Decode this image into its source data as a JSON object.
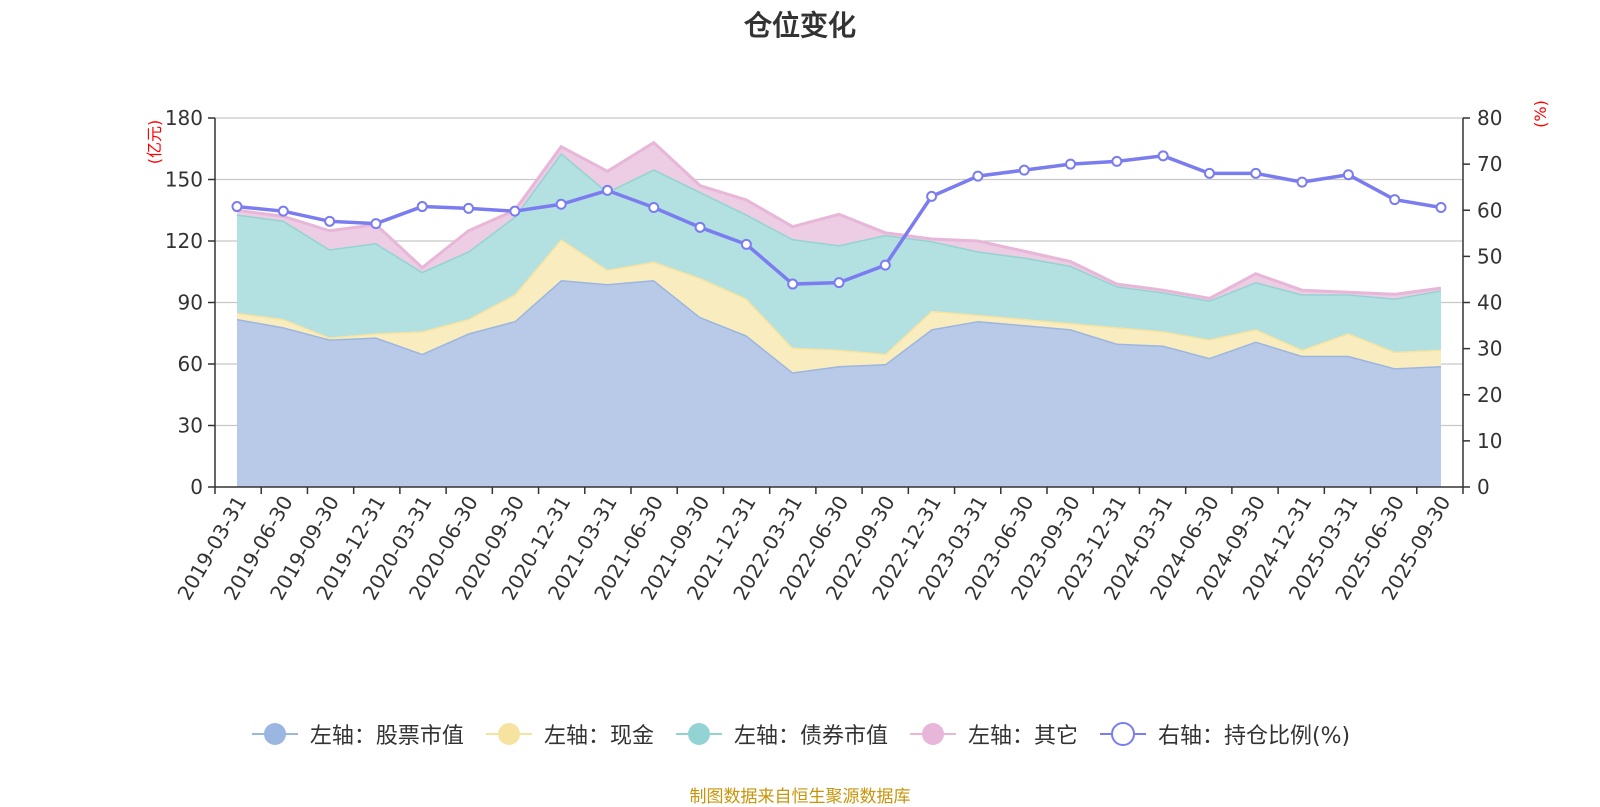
{
  "title": "仓位变化",
  "source_note": "制图数据来自恒生聚源数据库",
  "chart_data": {
    "type": "area",
    "title": "仓位变化",
    "categories": [
      "2019-03-31",
      "2019-06-30",
      "2019-09-30",
      "2019-12-31",
      "2020-03-31",
      "2020-06-30",
      "2020-09-30",
      "2020-12-31",
      "2021-03-31",
      "2021-06-30",
      "2021-09-30",
      "2021-12-31",
      "2022-03-31",
      "2022-06-30",
      "2022-09-30",
      "2022-12-31",
      "2023-03-31",
      "2023-06-30",
      "2023-09-30",
      "2023-12-31",
      "2024-03-31",
      "2024-06-30",
      "2024-09-30",
      "2024-12-31",
      "2025-03-31",
      "2025-06-30",
      "2025-09-30"
    ],
    "left_axis": {
      "unit": "(亿元)",
      "range": [
        0,
        180
      ],
      "ticks": [
        0,
        30,
        60,
        90,
        120,
        150,
        180
      ]
    },
    "right_axis": {
      "unit": "(%)",
      "range": [
        0,
        80
      ],
      "ticks": [
        0,
        10,
        20,
        30,
        40,
        50,
        60,
        70,
        80
      ]
    },
    "stacked_series": [
      {
        "name": "左轴：股票市值",
        "color": "#9bb6e0",
        "fill": "#b8cae8",
        "values": [
          82,
          78,
          72,
          73,
          65,
          75,
          81,
          101,
          99,
          101,
          83,
          74,
          56,
          59,
          60,
          77,
          81,
          79,
          77,
          70,
          69,
          63,
          71,
          64,
          64,
          58,
          59
        ]
      },
      {
        "name": "左轴：现金",
        "color": "#f7e3a0",
        "fill": "#f9ecbe",
        "values": [
          3,
          4,
          1,
          2,
          11,
          7,
          13,
          20,
          7,
          9,
          19,
          18,
          12,
          8,
          5,
          9,
          3,
          3,
          3,
          8,
          7,
          9,
          6,
          3,
          11,
          8,
          8
        ]
      },
      {
        "name": "左轴：债券市值",
        "color": "#94d3d3",
        "fill": "#b3e0e0",
        "values": [
          48,
          48,
          43,
          44,
          29,
          33,
          38,
          42,
          38,
          45,
          42,
          41,
          53,
          51,
          58,
          34,
          31,
          30,
          28,
          20,
          19,
          19,
          23,
          27,
          19,
          26,
          29
        ]
      },
      {
        "name": "左轴：其它",
        "color": "#e8b6d8",
        "fill": "#eccde3",
        "values": [
          2,
          2,
          9,
          9,
          2,
          10,
          3,
          3,
          10,
          13,
          3,
          7,
          6,
          15,
          1,
          1,
          5,
          3,
          2,
          1,
          1,
          1,
          4,
          2,
          1,
          2,
          1
        ]
      }
    ],
    "line_series": {
      "name": "右轴：持仓比例(%)",
      "color": "#7a7cf0",
      "values": [
        60.8,
        59.8,
        57.6,
        57.1,
        60.8,
        60.4,
        59.8,
        61.3,
        64.3,
        60.6,
        56.3,
        52.6,
        44.0,
        44.3,
        48.1,
        63.0,
        67.4,
        68.7,
        70.0,
        70.6,
        71.8,
        68.0,
        68.0,
        66.1,
        67.7,
        62.3,
        60.6
      ]
    }
  },
  "legend": [
    {
      "label": "左轴：股票市值",
      "color": "#9bb6e0",
      "marker": "filled"
    },
    {
      "label": "左轴：现金",
      "color": "#f7e3a0",
      "marker": "filled"
    },
    {
      "label": "左轴：债券市值",
      "color": "#94d3d3",
      "marker": "filled"
    },
    {
      "label": "左轴：其它",
      "color": "#e8b6d8",
      "marker": "filled"
    },
    {
      "label": "右轴：持仓比例(%)",
      "color": "#7a7cf0",
      "marker": "hollow"
    }
  ]
}
